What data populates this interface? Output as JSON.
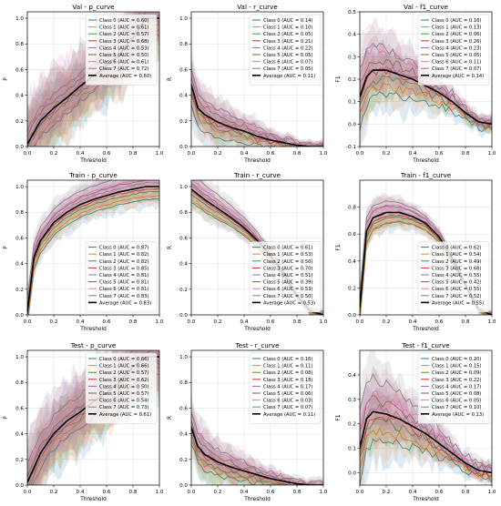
{
  "figure": {
    "colors": [
      "#1f77b4",
      "#ff7f0e",
      "#2ca02c",
      "#d62728",
      "#9467bd",
      "#8c564b",
      "#e377c2",
      "#7f7f7f"
    ],
    "average_color": "#000000",
    "legend_position": "upper-right"
  },
  "chart_data": [
    {
      "title": "Val - p_curve",
      "type": "line",
      "xlabel": "Threshold",
      "ylabel": "P",
      "xlim": [
        0,
        1
      ],
      "ylim": [
        0,
        1.05
      ],
      "yticks": [
        "0.0",
        "0.2",
        "0.4",
        "0.6",
        "0.8",
        "1.0"
      ],
      "grid": true,
      "legend": [
        "Class 0 (AUC = 0.60)",
        "Class 1 (AUC = 0.61)",
        "Class 2 (AUC = 0.57)",
        "Class 3 (AUC = 0.68)",
        "Class 4 (AUC = 0.53)",
        "Class 5 (AUC = 0.50)",
        "Class 6 (AUC = 0.61)",
        "Class 7 (AUC = 0.72)",
        "Average (AUC = 0.60)"
      ],
      "average": {
        "x": [
          0,
          0.1,
          0.2,
          0.3,
          0.4,
          0.5,
          0.6,
          0.7,
          0.8,
          0.9,
          1.0
        ],
        "y": [
          0.02,
          0.2,
          0.3,
          0.38,
          0.47,
          0.55,
          0.63,
          0.72,
          0.85,
          1.0,
          1.0
        ]
      }
    },
    {
      "title": "Val - r_curve",
      "type": "line",
      "xlabel": "Threshold",
      "ylabel": "R",
      "xlim": [
        0,
        1
      ],
      "ylim": [
        0,
        1.05
      ],
      "yticks": [
        "0.0",
        "0.2",
        "0.4",
        "0.6",
        "0.8",
        "1.0"
      ],
      "grid": true,
      "legend": [
        "Class 0 (AUC = 0.14)",
        "Class 1 (AUC = 0.10)",
        "Class 2 (AUC = 0.05)",
        "Class 3 (AUC = 0.21)",
        "Class 4 (AUC = 0.22)",
        "Class 5 (AUC = 0.05)",
        "Class 6 (AUC = 0.07)",
        "Class 7 (AUC = 0.05)",
        "Average (AUC = 0.11)"
      ],
      "average": {
        "x": [
          0,
          0.05,
          0.1,
          0.2,
          0.3,
          0.4,
          0.5,
          0.6,
          0.7,
          0.8,
          0.9,
          1.0
        ],
        "y": [
          0.48,
          0.3,
          0.25,
          0.19,
          0.15,
          0.12,
          0.08,
          0.05,
          0.03,
          0.01,
          0.0,
          0.0
        ]
      }
    },
    {
      "title": "Val - f1_curve",
      "type": "line",
      "xlabel": "Threshold",
      "ylabel": "F1",
      "xlim": [
        0,
        1
      ],
      "ylim": [
        -0.1,
        0.5
      ],
      "yticks": [
        "-0.1",
        "0.0",
        "0.1",
        "0.2",
        "0.3",
        "0.4",
        "0.5"
      ],
      "grid": true,
      "legend": [
        "Class 0 (AUC = 0.16)",
        "Class 1 (AUC = 0.13)",
        "Class 2 (AUC = 0.06)",
        "Class 3 (AUC = 0.26)",
        "Class 4 (AUC = 0.23)",
        "Class 5 (AUC = 0.05)",
        "Class 6 (AUC = 0.11)",
        "Class 7 (AUC = 0.07)",
        "Average (AUC = 0.14)"
      ],
      "average": {
        "x": [
          0,
          0.05,
          0.1,
          0.2,
          0.3,
          0.4,
          0.5,
          0.6,
          0.7,
          0.8,
          0.9,
          1.0
        ],
        "y": [
          0.12,
          0.21,
          0.24,
          0.24,
          0.22,
          0.2,
          0.17,
          0.14,
          0.1,
          0.05,
          0.01,
          0.0
        ]
      }
    },
    {
      "title": "Train - p_curve",
      "type": "line",
      "xlabel": "Threshold",
      "ylabel": "P",
      "xlim": [
        0,
        1
      ],
      "ylim": [
        0,
        1.05
      ],
      "yticks": [
        "0.0",
        "0.2",
        "0.4",
        "0.6",
        "0.8",
        "1.0"
      ],
      "grid": true,
      "legend": [
        "Class 0 (AUC = 0.87)",
        "Class 1 (AUC = 0.82)",
        "Class 2 (AUC = 0.82)",
        "Class 3 (AUC = 0.85)",
        "Class 4 (AUC = 0.81)",
        "Class 5 (AUC = 0.81)",
        "Class 6 (AUC = 0.81)",
        "Class 7 (AUC = 0.83)",
        "Average (AUC = 0.83)"
      ],
      "average": {
        "x": [
          0,
          0.05,
          0.1,
          0.2,
          0.3,
          0.4,
          0.5,
          0.6,
          0.7,
          0.8,
          0.9,
          1.0
        ],
        "y": [
          0.02,
          0.45,
          0.58,
          0.72,
          0.8,
          0.86,
          0.9,
          0.93,
          0.96,
          0.98,
          1.0,
          1.0
        ]
      }
    },
    {
      "title": "Train - r_curve",
      "type": "line",
      "xlabel": "Threshold",
      "ylabel": "R",
      "xlim": [
        0,
        1
      ],
      "ylim": [
        0,
        1.05
      ],
      "yticks": [
        "0.0",
        "0.2",
        "0.4",
        "0.6",
        "0.8",
        "1.0"
      ],
      "grid": true,
      "legend": [
        "Class 0 (AUC = 0.61)",
        "Class 1 (AUC = 0.53)",
        "Class 2 (AUC = 0.50)",
        "Class 3 (AUC = 0.70)",
        "Class 4 (AUC = 0.51)",
        "Class 5 (AUC = 0.39)",
        "Class 6 (AUC = 0.53)",
        "Class 7 (AUC = 0.50)",
        "Average (AUC = 0.53)"
      ],
      "average": {
        "x": [
          0,
          0.1,
          0.2,
          0.3,
          0.4,
          0.5,
          0.6,
          0.7,
          0.8,
          0.9,
          1.0
        ],
        "y": [
          0.98,
          0.9,
          0.83,
          0.76,
          0.68,
          0.58,
          0.46,
          0.32,
          0.15,
          0.03,
          0.0
        ]
      }
    },
    {
      "title": "Train - f1_curve",
      "type": "line",
      "xlabel": "Threshold",
      "ylabel": "F1",
      "xlim": [
        0,
        1
      ],
      "ylim": [
        0,
        1.0
      ],
      "yticks": [
        "0.0",
        "0.2",
        "0.4",
        "0.6",
        "0.8"
      ],
      "grid": true,
      "legend": [
        "Class 0 (AUC = 0.62)",
        "Class 1 (AUC = 0.54)",
        "Class 2 (AUC = 0.49)",
        "Class 3 (AUC = 0.68)",
        "Class 4 (AUC = 0.55)",
        "Class 5 (AUC = 0.42)",
        "Class 6 (AUC = 0.55)",
        "Class 7 (AUC = 0.52)",
        "Average (AUC = 0.55)"
      ],
      "average": {
        "x": [
          0,
          0.05,
          0.1,
          0.2,
          0.3,
          0.4,
          0.5,
          0.6,
          0.7,
          0.8,
          0.9,
          1.0
        ],
        "y": [
          0.05,
          0.62,
          0.72,
          0.76,
          0.76,
          0.73,
          0.68,
          0.58,
          0.42,
          0.22,
          0.04,
          0.0
        ]
      }
    },
    {
      "title": "Test - p_curve",
      "type": "line",
      "xlabel": "Threshold",
      "ylabel": "P",
      "xlim": [
        0,
        1
      ],
      "ylim": [
        0,
        1.05
      ],
      "yticks": [
        "0.0",
        "0.2",
        "0.4",
        "0.6",
        "0.8",
        "1.0"
      ],
      "grid": true,
      "legend": [
        "Class 0 (AUC = 0.66)",
        "Class 1 (AUC = 0.66)",
        "Class 2 (AUC = 0.57)",
        "Class 3 (AUC = 0.62)",
        "Class 4 (AUC = 0.50)",
        "Class 5 (AUC = 0.57)",
        "Class 6 (AUC = 0.54)",
        "Class 7 (AUC = 0.73)",
        "Average (AUC = 0.61)"
      ],
      "average": {
        "x": [
          0,
          0.1,
          0.2,
          0.3,
          0.4,
          0.5,
          0.6,
          0.7,
          0.8,
          0.9,
          1.0
        ],
        "y": [
          0.02,
          0.25,
          0.4,
          0.5,
          0.57,
          0.65,
          0.72,
          0.8,
          0.92,
          1.0,
          1.0
        ]
      }
    },
    {
      "title": "Test - r_curve",
      "type": "line",
      "xlabel": "Threshold",
      "ylabel": "R",
      "xlim": [
        0,
        1
      ],
      "ylim": [
        0,
        1.05
      ],
      "yticks": [
        "0.0",
        "0.2",
        "0.4",
        "0.6",
        "0.8",
        "1.0"
      ],
      "grid": true,
      "legend": [
        "Class 0 (AUC = 0.16)",
        "Class 1 (AUC = 0.11)",
        "Class 2 (AUC = 0.08)",
        "Class 3 (AUC = 0.18)",
        "Class 4 (AUC = 0.17)",
        "Class 5 (AUC = 0.06)",
        "Class 6 (AUC = 0.03)",
        "Class 7 (AUC = 0.07)",
        "Average (AUC = 0.11)"
      ],
      "average": {
        "x": [
          0,
          0.05,
          0.1,
          0.2,
          0.3,
          0.4,
          0.5,
          0.6,
          0.7,
          0.8,
          0.9,
          1.0
        ],
        "y": [
          0.45,
          0.3,
          0.24,
          0.18,
          0.14,
          0.11,
          0.08,
          0.05,
          0.03,
          0.01,
          0.0,
          0.0
        ]
      }
    },
    {
      "title": "Test - f1_curve",
      "type": "line",
      "xlabel": "Threshold",
      "ylabel": "F1",
      "xlim": [
        0,
        1
      ],
      "ylim": [
        -0.05,
        0.5
      ],
      "yticks": [
        "0.0",
        "0.1",
        "0.2",
        "0.3",
        "0.4"
      ],
      "grid": true,
      "legend": [
        "Class 0 (AUC = 0.20)",
        "Class 1 (AUC = 0.15)",
        "Class 2 (AUC = 0.09)",
        "Class 3 (AUC = 0.22)",
        "Class 4 (AUC = 0.17)",
        "Class 5 (AUC = 0.08)",
        "Class 6 (AUC = 0.05)",
        "Class 7 (AUC = 0.10)",
        "Average (AUC = 0.13)"
      ],
      "average": {
        "x": [
          0,
          0.05,
          0.1,
          0.2,
          0.3,
          0.4,
          0.5,
          0.6,
          0.7,
          0.8,
          0.9,
          1.0
        ],
        "y": [
          0.1,
          0.22,
          0.25,
          0.24,
          0.22,
          0.19,
          0.16,
          0.12,
          0.08,
          0.04,
          0.01,
          0.0
        ]
      }
    }
  ]
}
